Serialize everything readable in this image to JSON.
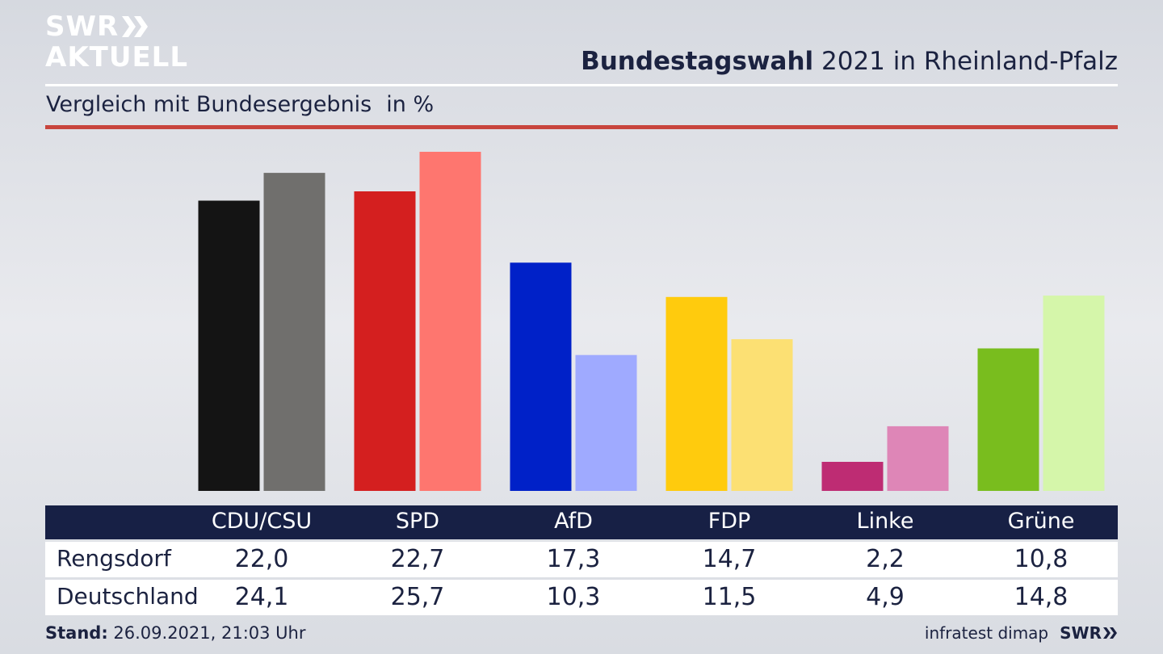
{
  "header": {
    "logo_line1": "SWR",
    "logo_line2": "AKTUELL",
    "title_bold": "Bundestagswahl",
    "title_rest": " 2021 in Rheinland-Pfalz",
    "subtitle": "Vergleich mit Bundesergebnis",
    "unit": "in %"
  },
  "colors": {
    "accent_rule": "#c8453d",
    "table_header_bg": "#172045",
    "text": "#1b2240"
  },
  "chart_data": {
    "type": "bar",
    "categories": [
      "CDU/CSU",
      "SPD",
      "AfD",
      "FDP",
      "Linke",
      "Grüne"
    ],
    "series": [
      {
        "name": "Rengsdorf",
        "values": [
          22.0,
          22.7,
          17.3,
          14.7,
          2.2,
          10.8
        ],
        "colors": [
          "#141414",
          "#d41f1f",
          "#0021c8",
          "#ffcb0d",
          "#be2c73",
          "#79bd1e"
        ]
      },
      {
        "name": "Deutschland",
        "values": [
          24.1,
          25.7,
          10.3,
          11.5,
          4.9,
          14.8
        ],
        "colors": [
          "#706f6d",
          "#fe766f",
          "#9faaff",
          "#fce073",
          "#de86b7",
          "#d5f6aa"
        ]
      }
    ],
    "ylim": [
      0,
      25.7
    ]
  },
  "table": {
    "headers": [
      "CDU/CSU",
      "SPD",
      "AfD",
      "FDP",
      "Linke",
      "Grüne"
    ],
    "rows": [
      {
        "label": "Rengsdorf",
        "values": [
          "22,0",
          "22,7",
          "17,3",
          "14,7",
          "2,2",
          "10,8"
        ]
      },
      {
        "label": "Deutschland",
        "values": [
          "24,1",
          "25,7",
          "10,3",
          "11,5",
          "4,9",
          "14,8"
        ]
      }
    ]
  },
  "footer": {
    "stand_label": "Stand:",
    "stand_value": " 26.09.2021, 21:03 Uhr",
    "source": "infratest dimap",
    "brand": "SWR"
  }
}
